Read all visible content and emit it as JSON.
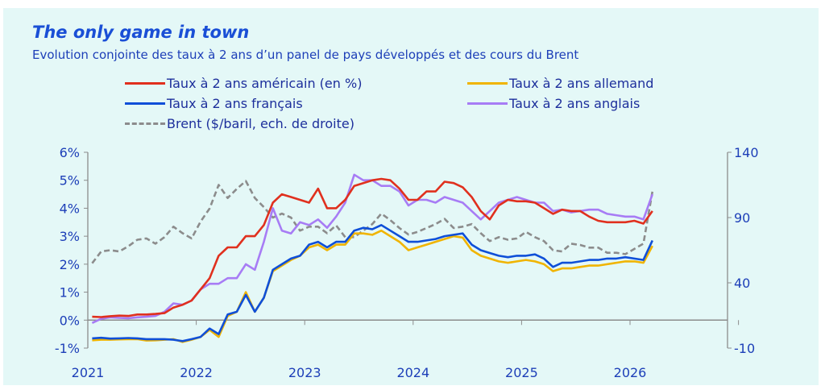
{
  "chart_data": {
    "type": "line",
    "title": "The only game in town",
    "subtitle": "Evolution conjointe des taux à 2 ans d’un panel de pays développés et des cours du Brent",
    "x_tick_labels": [
      "2021",
      "2022",
      "2023",
      "2024",
      "2025",
      "2026"
    ],
    "y_left": {
      "range": [
        -1,
        6
      ],
      "ticks": [
        "-1%",
        "0%",
        "1%",
        "2%",
        "3%",
        "4%",
        "5%",
        "6%"
      ],
      "tick_values": [
        -1,
        0,
        1,
        2,
        3,
        4,
        5,
        6
      ]
    },
    "y_right": {
      "range": [
        -10,
        140
      ],
      "ticks": [
        "-10",
        "40",
        "90",
        "140"
      ],
      "tick_values": [
        -10,
        40,
        90,
        140
      ]
    },
    "grid": false,
    "legend_placement": "top",
    "dates": [
      "2021-01",
      "2021-02",
      "2021-03",
      "2021-04",
      "2021-05",
      "2021-06",
      "2021-07",
      "2021-08",
      "2021-09",
      "2021-10",
      "2021-11",
      "2021-12",
      "2022-01",
      "2022-02",
      "2022-03",
      "2022-04",
      "2022-05",
      "2022-06",
      "2022-07",
      "2022-08",
      "2022-09",
      "2022-10",
      "2022-11",
      "2022-12",
      "2023-01",
      "2023-02",
      "2023-03",
      "2023-04",
      "2023-05",
      "2023-06",
      "2023-07",
      "2023-08",
      "2023-09",
      "2023-10",
      "2023-11",
      "2023-12",
      "2024-01",
      "2024-02",
      "2024-03",
      "2024-04",
      "2024-05",
      "2024-06",
      "2024-07",
      "2024-08",
      "2024-09",
      "2024-10",
      "2024-11",
      "2024-12",
      "2025-01",
      "2025-02",
      "2025-03",
      "2025-04",
      "2025-05",
      "2025-06",
      "2025-07",
      "2025-08",
      "2025-09",
      "2025-10",
      "2025-11",
      "2025-12",
      "2026-01",
      "2026-02",
      "2026-03"
    ],
    "series": [
      {
        "name": "Taux à 2 ans américain (en %)",
        "color": "#e0301e",
        "axis": "left",
        "dash": false,
        "values": [
          0.12,
          0.11,
          0.14,
          0.16,
          0.15,
          0.2,
          0.2,
          0.22,
          0.25,
          0.45,
          0.55,
          0.7,
          1.1,
          1.5,
          2.3,
          2.6,
          2.6,
          3.0,
          3.0,
          3.4,
          4.2,
          4.5,
          4.4,
          4.3,
          4.2,
          4.7,
          4.0,
          4.0,
          4.3,
          4.8,
          4.9,
          5.0,
          5.05,
          5.0,
          4.7,
          4.3,
          4.3,
          4.6,
          4.6,
          4.95,
          4.9,
          4.75,
          4.4,
          3.9,
          3.6,
          4.1,
          4.3,
          4.25,
          4.25,
          4.2,
          4.0,
          3.8,
          3.95,
          3.9,
          3.9,
          3.7,
          3.55,
          3.5,
          3.5,
          3.5,
          3.55,
          3.45,
          3.9
        ]
      },
      {
        "name": "Taux à 2 ans allemand",
        "color": "#f0b400",
        "axis": "left",
        "dash": false,
        "values": [
          -0.72,
          -0.7,
          -0.7,
          -0.69,
          -0.68,
          -0.68,
          -0.73,
          -0.72,
          -0.7,
          -0.68,
          -0.78,
          -0.7,
          -0.6,
          -0.35,
          -0.6,
          0.15,
          0.3,
          1.0,
          0.3,
          0.8,
          1.75,
          1.95,
          2.15,
          2.3,
          2.6,
          2.7,
          2.5,
          2.7,
          2.7,
          3.1,
          3.1,
          3.05,
          3.2,
          3.0,
          2.8,
          2.5,
          2.6,
          2.7,
          2.8,
          2.9,
          3.0,
          2.95,
          2.5,
          2.3,
          2.2,
          2.1,
          2.05,
          2.1,
          2.15,
          2.1,
          2.0,
          1.75,
          1.85,
          1.85,
          1.9,
          1.95,
          1.95,
          2.0,
          2.05,
          2.1,
          2.1,
          2.05,
          2.65
        ]
      },
      {
        "name": "Taux à 2 ans français",
        "color": "#0f4fd8",
        "axis": "left",
        "dash": false,
        "values": [
          -0.65,
          -0.63,
          -0.66,
          -0.65,
          -0.64,
          -0.65,
          -0.68,
          -0.68,
          -0.68,
          -0.7,
          -0.75,
          -0.68,
          -0.6,
          -0.3,
          -0.5,
          0.2,
          0.3,
          0.9,
          0.3,
          0.8,
          1.8,
          2.0,
          2.2,
          2.3,
          2.7,
          2.8,
          2.6,
          2.8,
          2.8,
          3.2,
          3.3,
          3.25,
          3.4,
          3.2,
          3.0,
          2.8,
          2.8,
          2.85,
          2.9,
          3.0,
          3.05,
          3.1,
          2.7,
          2.5,
          2.4,
          2.3,
          2.25,
          2.3,
          2.3,
          2.35,
          2.2,
          1.9,
          2.05,
          2.05,
          2.1,
          2.15,
          2.15,
          2.2,
          2.2,
          2.25,
          2.2,
          2.15,
          2.85
        ]
      },
      {
        "name": "Taux à 2 ans anglais",
        "color": "#a77cf5",
        "axis": "left",
        "dash": false,
        "values": [
          -0.1,
          0.05,
          0.1,
          0.08,
          0.07,
          0.1,
          0.12,
          0.15,
          0.3,
          0.6,
          0.55,
          0.7,
          1.1,
          1.3,
          1.3,
          1.5,
          1.5,
          2.0,
          1.8,
          2.8,
          4.0,
          3.2,
          3.1,
          3.5,
          3.4,
          3.6,
          3.3,
          3.7,
          4.2,
          5.2,
          5.0,
          5.0,
          4.8,
          4.8,
          4.6,
          4.1,
          4.3,
          4.3,
          4.2,
          4.4,
          4.3,
          4.2,
          3.9,
          3.6,
          3.9,
          4.2,
          4.3,
          4.4,
          4.3,
          4.2,
          4.2,
          3.9,
          3.95,
          3.85,
          3.9,
          3.95,
          3.95,
          3.8,
          3.75,
          3.7,
          3.7,
          3.6,
          4.5
        ]
      },
      {
        "name": "Brent ($/baril, ech. de droite)",
        "color": "#8c8c8c",
        "axis": "right",
        "dash": true,
        "values": [
          55,
          64,
          65,
          64,
          68,
          73,
          74,
          70,
          75,
          83,
          78,
          74,
          87,
          97,
          115,
          105,
          112,
          118,
          105,
          98,
          90,
          93,
          90,
          80,
          83,
          83,
          78,
          84,
          75,
          75,
          80,
          85,
          93,
          88,
          82,
          77,
          79,
          82,
          85,
          89,
          82,
          83,
          85,
          78,
          72,
          75,
          73,
          74,
          79,
          75,
          72,
          65,
          64,
          70,
          69,
          67,
          67,
          63,
          63,
          62,
          66,
          70,
          110
        ]
      }
    ]
  }
}
